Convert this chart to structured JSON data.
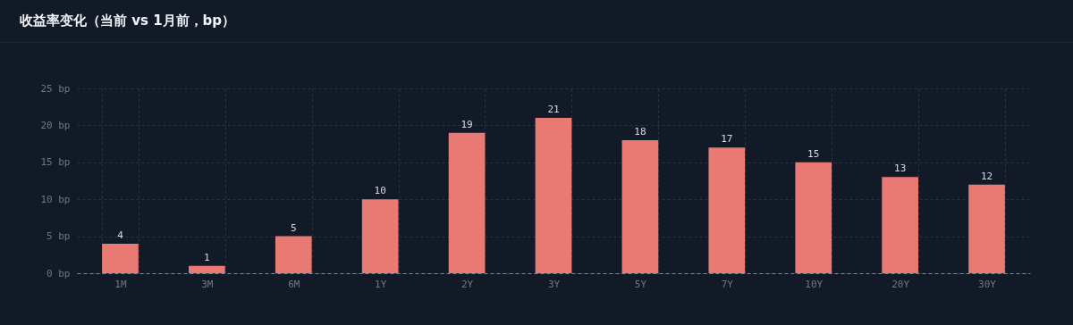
{
  "chart_data": {
    "type": "bar",
    "title": "收益率变化（当前 vs 1月前，bp）",
    "categories": [
      "1M",
      "3M",
      "6M",
      "1Y",
      "2Y",
      "3Y",
      "5Y",
      "7Y",
      "10Y",
      "20Y",
      "30Y"
    ],
    "values": [
      4,
      1,
      5,
      10,
      19,
      21,
      18,
      17,
      15,
      13,
      12
    ],
    "color": "#e87a73",
    "ylim": [
      0,
      25
    ],
    "yticks": [
      {
        "value": 0,
        "label": "0 bp"
      },
      {
        "value": 5,
        "label": "5 bp"
      },
      {
        "value": 10,
        "label": "10 bp"
      },
      {
        "value": 15,
        "label": "15 bp"
      },
      {
        "value": 20,
        "label": "20 bp"
      },
      {
        "value": 25,
        "label": "25 bp"
      }
    ],
    "grid": true,
    "data_labels": true
  }
}
